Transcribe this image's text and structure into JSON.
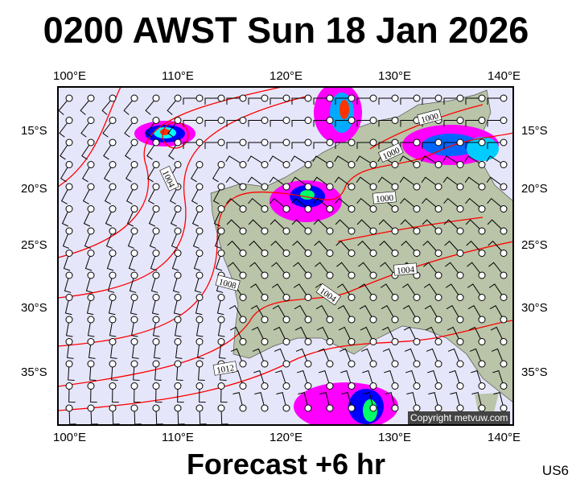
{
  "title": "0200 AWST Sun 18 Jan 2026",
  "footer": "Forecast +6 hr",
  "code": "US6",
  "copyright": "Copyright metvuw.com",
  "lon_labels": [
    "100°E",
    "110°E",
    "120°E",
    "130°E",
    "140°E"
  ],
  "lat_labels": [
    "15°S",
    "20°S",
    "25°S",
    "30°S",
    "35°S"
  ],
  "isobar_labels": [
    "1000",
    "1000",
    "1000",
    "1004",
    "1004",
    "1004",
    "1008",
    "1012"
  ],
  "colors": {
    "ocean": "#e6e6fa",
    "land": "#b9c4a8",
    "isobar": "#ff0000",
    "barb": "#000000",
    "rain_low": "#ff00ff",
    "rain_mid": "#0000ff",
    "rain_high": "#00ffff",
    "rain_peak": "#ff3300"
  }
}
